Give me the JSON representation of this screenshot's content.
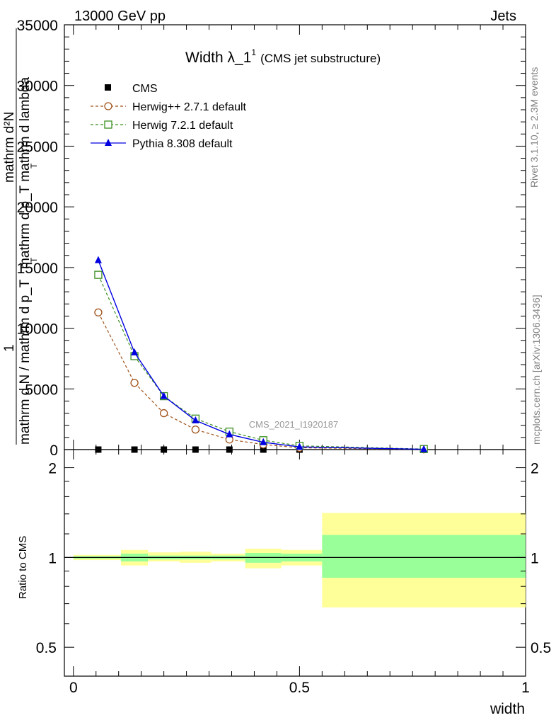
{
  "header": {
    "left": "13000 GeV pp",
    "right": "Jets"
  },
  "title": {
    "main": "Width λ_1",
    "superscript": "1",
    "sub": "(CMS jet substructure)"
  },
  "side_labels": {
    "rivet": "Rivet 3.1.10, ≥ 2.3M events",
    "mcplots": "mcplots.cern.ch [arXiv:1306.3436]"
  },
  "watermark": "CMS_2021_I1920187",
  "y_axis_label": {
    "numerator_1": "1",
    "numerator_2": "mathrm d²N",
    "denominator_1": "mathrm d N / mathrm d p_T",
    "denominator_2": "mathrm d p_T mathrm d lambda",
    "sub_T1": "T",
    "sub_T2": "T"
  },
  "ratio_ylabel": "Ratio to CMS",
  "x_axis_label": "width",
  "chart_data": [
    {
      "type": "line",
      "panel": "main",
      "xlim": [
        -0.02,
        1.0
      ],
      "ylim": [
        0,
        35000
      ],
      "y_ticks": [
        "0",
        "5000",
        "10000",
        "15000",
        "20000",
        "25000",
        "30000",
        "35000"
      ],
      "y_tick_values": [
        0,
        5000,
        10000,
        15000,
        20000,
        25000,
        30000,
        35000
      ],
      "legend_position": "top-left",
      "series": [
        {
          "name": "CMS",
          "style": "data",
          "color": "#000000",
          "marker": "filled-square",
          "x": [
            0.055,
            0.135,
            0.2,
            0.27,
            0.345,
            0.42,
            0.5,
            0.775
          ],
          "y": [
            0,
            0,
            0,
            0,
            0,
            0,
            0,
            0
          ]
        },
        {
          "name": "Herwig++ 2.7.1 default",
          "style": "dashed",
          "color": "#a0521a",
          "marker": "open-circle",
          "x": [
            0.055,
            0.135,
            0.2,
            0.27,
            0.345,
            0.42,
            0.5,
            0.775
          ],
          "y": [
            11300,
            5500,
            3000,
            1650,
            830,
            420,
            150,
            18
          ]
        },
        {
          "name": "Herwig 7.2.1 default",
          "style": "dashed",
          "color": "#3a8f1e",
          "marker": "open-square",
          "x": [
            0.055,
            0.135,
            0.2,
            0.27,
            0.345,
            0.42,
            0.5,
            0.775
          ],
          "y": [
            14400,
            7700,
            4400,
            2550,
            1480,
            770,
            310,
            45
          ]
        },
        {
          "name": "Pythia 8.308 default",
          "style": "solid",
          "color": "#0000e0",
          "marker": "filled-triangle",
          "x": [
            0.055,
            0.135,
            0.2,
            0.27,
            0.345,
            0.42,
            0.5,
            0.775
          ],
          "y": [
            15600,
            8000,
            4400,
            2400,
            1250,
            600,
            220,
            25
          ]
        }
      ]
    },
    {
      "type": "area",
      "panel": "ratio",
      "xlim": [
        -0.02,
        1.0
      ],
      "ylim": [
        0.4,
        2.3
      ],
      "y_scale": "log",
      "x_ticks": [
        "0",
        "0.5",
        "1"
      ],
      "x_tick_values": [
        0,
        0.5,
        1
      ],
      "y_ticks": [
        "0.5",
        "1",
        "2"
      ],
      "y_tick_values": [
        0.5,
        1,
        2
      ],
      "reference_line": 1,
      "band_colors": {
        "stat": "#99ff99",
        "total": "#ffff99"
      },
      "bins": [
        {
          "x_low": 0.0,
          "x_high": 0.105,
          "stat": [
            0.99,
            1.01
          ],
          "total": [
            0.98,
            1.02
          ]
        },
        {
          "x_low": 0.105,
          "x_high": 0.165,
          "stat": [
            0.97,
            1.03
          ],
          "total": [
            0.94,
            1.06
          ]
        },
        {
          "x_low": 0.165,
          "x_high": 0.235,
          "stat": [
            0.985,
            1.015
          ],
          "total": [
            0.97,
            1.04
          ]
        },
        {
          "x_low": 0.235,
          "x_high": 0.305,
          "stat": [
            0.985,
            1.015
          ],
          "total": [
            0.96,
            1.045
          ]
        },
        {
          "x_low": 0.305,
          "x_high": 0.38,
          "stat": [
            0.985,
            1.015
          ],
          "total": [
            0.97,
            1.03
          ]
        },
        {
          "x_low": 0.38,
          "x_high": 0.46,
          "stat": [
            0.96,
            1.035
          ],
          "total": [
            0.92,
            1.07
          ]
        },
        {
          "x_low": 0.46,
          "x_high": 0.55,
          "stat": [
            0.97,
            1.03
          ],
          "total": [
            0.94,
            1.06
          ]
        },
        {
          "x_low": 0.55,
          "x_high": 1.0,
          "stat": [
            0.855,
            1.19
          ],
          "total": [
            0.68,
            1.41
          ]
        }
      ]
    }
  ]
}
